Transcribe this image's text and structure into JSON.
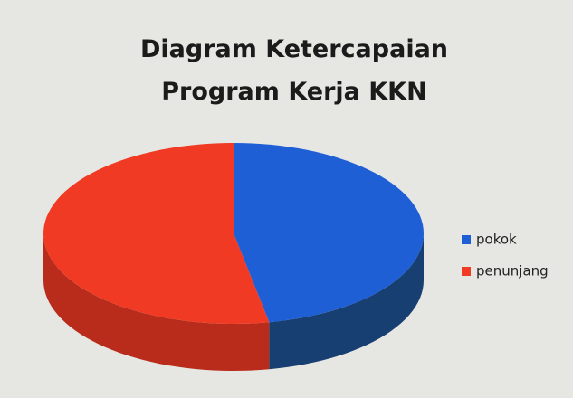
{
  "chart_data": {
    "type": "pie",
    "title": [
      "Diagram Ketercapaian",
      "Program Kerja KKN"
    ],
    "categories": [
      "pokok",
      "penunjang"
    ],
    "values": [
      47,
      53
    ],
    "colors": [
      "#1f5fd6",
      "#f03a24"
    ],
    "side_colors": [
      "#173f72",
      "#b92b1b"
    ],
    "legend": "right",
    "three_d": true
  }
}
